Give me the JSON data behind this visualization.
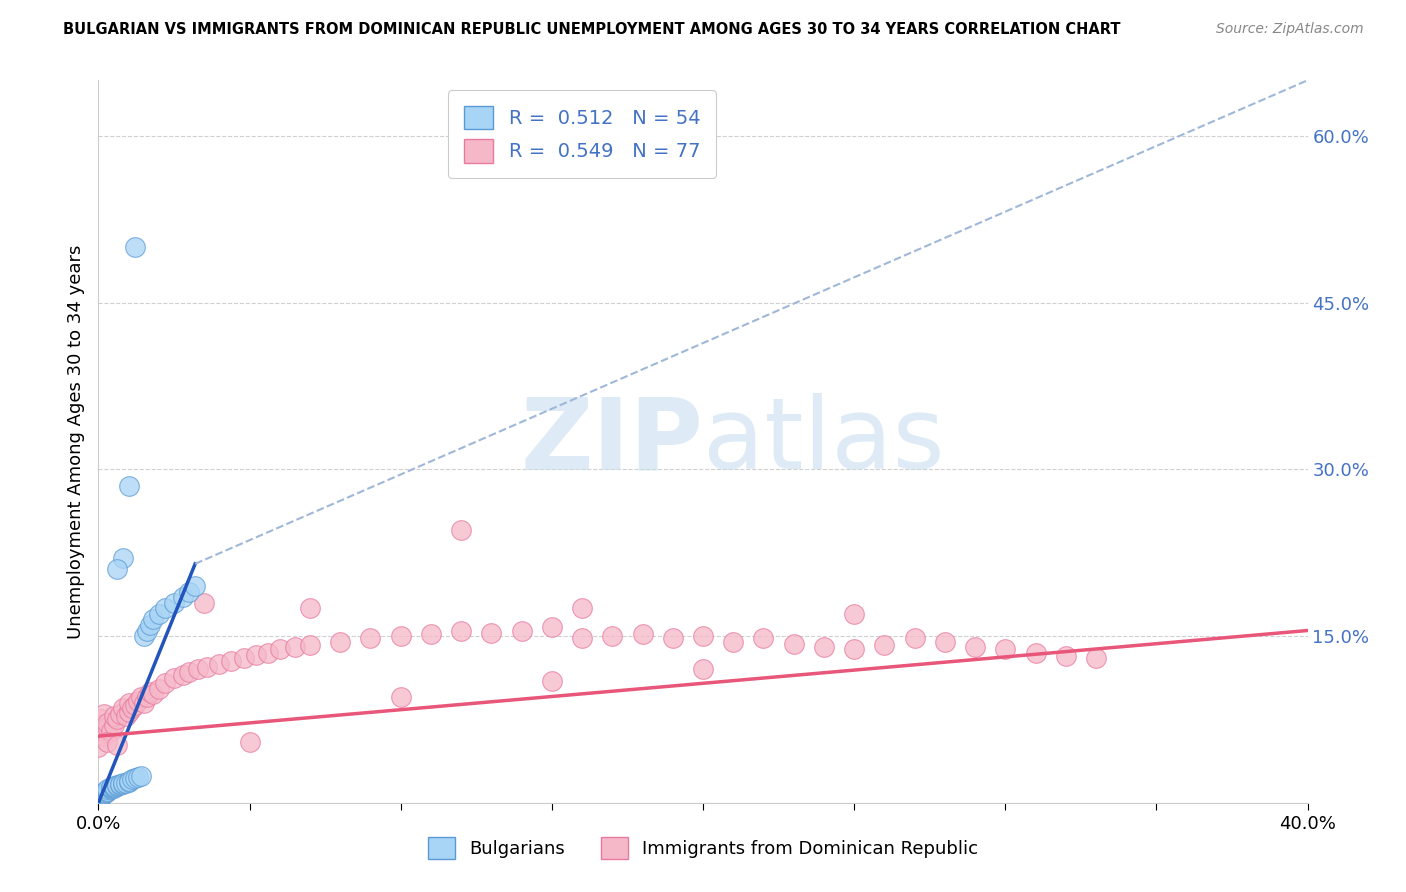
{
  "title": "BULGARIAN VS IMMIGRANTS FROM DOMINICAN REPUBLIC UNEMPLOYMENT AMONG AGES 30 TO 34 YEARS CORRELATION CHART",
  "source": "Source: ZipAtlas.com",
  "ylabel": "Unemployment Among Ages 30 to 34 years",
  "xmin": 0.0,
  "xmax": 0.4,
  "ymin": 0.0,
  "ymax": 0.65,
  "yticks": [
    0.0,
    0.15,
    0.3,
    0.45,
    0.6
  ],
  "ytick_labels": [
    "",
    "15.0%",
    "30.0%",
    "45.0%",
    "60.0%"
  ],
  "xtick_vals": [
    0.0,
    0.05,
    0.1,
    0.15,
    0.2,
    0.25,
    0.3,
    0.35,
    0.4
  ],
  "xtick_labels": [
    "0.0%",
    "",
    "",
    "",
    "",
    "",
    "",
    "",
    "40.0%"
  ],
  "legend_R_blue": "0.512",
  "legend_N_blue": "54",
  "legend_R_pink": "0.549",
  "legend_N_pink": "77",
  "blue_face": "#a8d4f5",
  "blue_edge": "#5b9bd5",
  "pink_face": "#f5b8c8",
  "pink_edge": "#e87aa0",
  "blue_line": "#2255bb",
  "pink_line": "#e8567a",
  "dash_color": "#a0b8d8",
  "blue_x": [
    0.0,
    0.0,
    0.0,
    0.0,
    0.0,
    0.0,
    0.0,
    0.0,
    0.0,
    0.0,
    0.001,
    0.001,
    0.001,
    0.001,
    0.001,
    0.002,
    0.002,
    0.002,
    0.003,
    0.003,
    0.003,
    0.004,
    0.004,
    0.004,
    0.005,
    0.005,
    0.005,
    0.006,
    0.006,
    0.007,
    0.007,
    0.008,
    0.008,
    0.009,
    0.01,
    0.01,
    0.011,
    0.012,
    0.013,
    0.014,
    0.015,
    0.016,
    0.017,
    0.018,
    0.02,
    0.022,
    0.025,
    0.028,
    0.03,
    0.032,
    0.012,
    0.01,
    0.008,
    0.006
  ],
  "blue_y": [
    0.0,
    0.0,
    0.0,
    0.001,
    0.001,
    0.002,
    0.002,
    0.003,
    0.004,
    0.005,
    0.005,
    0.006,
    0.006,
    0.007,
    0.008,
    0.008,
    0.009,
    0.01,
    0.01,
    0.011,
    0.012,
    0.012,
    0.013,
    0.014,
    0.013,
    0.014,
    0.015,
    0.015,
    0.016,
    0.016,
    0.017,
    0.017,
    0.018,
    0.018,
    0.019,
    0.02,
    0.021,
    0.022,
    0.023,
    0.024,
    0.15,
    0.155,
    0.16,
    0.165,
    0.17,
    0.175,
    0.18,
    0.185,
    0.19,
    0.195,
    0.5,
    0.285,
    0.22,
    0.21
  ],
  "pink_x": [
    0.0,
    0.001,
    0.001,
    0.002,
    0.002,
    0.003,
    0.003,
    0.004,
    0.005,
    0.005,
    0.006,
    0.007,
    0.008,
    0.009,
    0.01,
    0.01,
    0.011,
    0.012,
    0.013,
    0.014,
    0.015,
    0.016,
    0.017,
    0.018,
    0.02,
    0.022,
    0.025,
    0.028,
    0.03,
    0.033,
    0.036,
    0.04,
    0.044,
    0.048,
    0.052,
    0.056,
    0.06,
    0.065,
    0.07,
    0.08,
    0.09,
    0.1,
    0.11,
    0.12,
    0.13,
    0.14,
    0.15,
    0.16,
    0.17,
    0.18,
    0.19,
    0.2,
    0.21,
    0.22,
    0.23,
    0.24,
    0.25,
    0.26,
    0.27,
    0.28,
    0.29,
    0.3,
    0.31,
    0.32,
    0.33,
    0.0,
    0.003,
    0.006,
    0.05,
    0.1,
    0.15,
    0.2,
    0.25,
    0.035,
    0.07,
    0.12,
    0.16
  ],
  "pink_y": [
    0.07,
    0.065,
    0.075,
    0.06,
    0.08,
    0.068,
    0.072,
    0.065,
    0.07,
    0.078,
    0.075,
    0.08,
    0.085,
    0.078,
    0.082,
    0.09,
    0.085,
    0.088,
    0.092,
    0.095,
    0.09,
    0.095,
    0.1,
    0.098,
    0.102,
    0.108,
    0.112,
    0.115,
    0.118,
    0.12,
    0.122,
    0.125,
    0.128,
    0.13,
    0.133,
    0.135,
    0.138,
    0.14,
    0.142,
    0.145,
    0.148,
    0.15,
    0.152,
    0.155,
    0.153,
    0.155,
    0.158,
    0.148,
    0.15,
    0.152,
    0.148,
    0.15,
    0.145,
    0.148,
    0.143,
    0.14,
    0.138,
    0.142,
    0.148,
    0.145,
    0.14,
    0.138,
    0.135,
    0.132,
    0.13,
    0.05,
    0.055,
    0.052,
    0.055,
    0.095,
    0.11,
    0.12,
    0.17,
    0.18,
    0.175,
    0.245,
    0.175
  ],
  "blue_line_x": [
    0.0,
    0.032
  ],
  "blue_line_y": [
    0.0,
    0.215
  ],
  "dash_line_x": [
    0.032,
    0.4
  ],
  "dash_line_y": [
    0.215,
    0.65
  ],
  "pink_line_x": [
    0.0,
    0.4
  ],
  "pink_line_y": [
    0.06,
    0.155
  ],
  "watermark_zip": "ZIP",
  "watermark_atlas": "atlas",
  "background_color": "#ffffff",
  "grid_color": "#d0d0d0",
  "tick_label_color": "#4472c4"
}
